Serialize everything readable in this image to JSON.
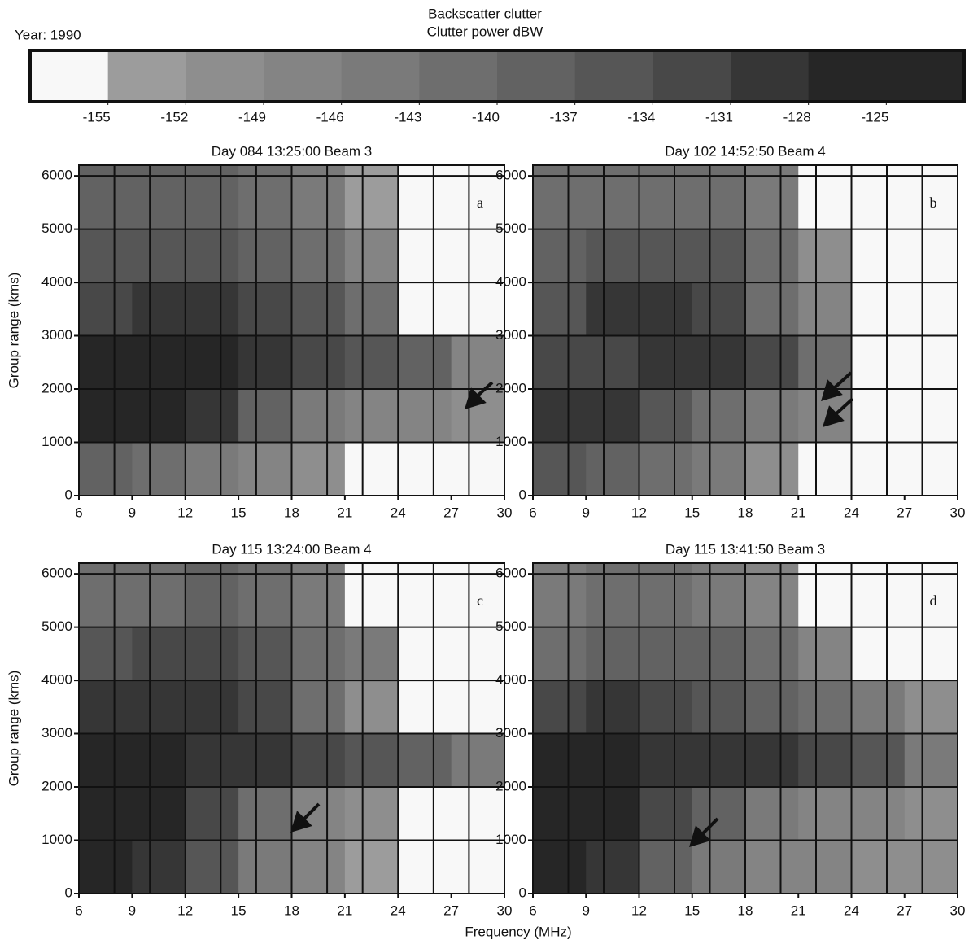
{
  "chart_data": [
    {
      "type": "colorbar",
      "title": "Backscatter clutter",
      "subtitle": "Clutter power dBW",
      "note": "Year: 1990",
      "ticks": [
        -155,
        -152,
        -149,
        -146,
        -143,
        -140,
        -137,
        -134,
        -131,
        -128,
        -125
      ],
      "colors": [
        "#f8f8f8",
        "#9c9c9c",
        "#8e8e8e",
        "#848484",
        "#7a7a7a",
        "#6e6e6e",
        "#626262",
        "#565656",
        "#484848",
        "#363636",
        "#262626",
        "#262626"
      ]
    },
    {
      "type": "heatmap",
      "title": "Day 084 13:25:00 Beam 3",
      "label": "a",
      "ylabel": "Group range (kms)",
      "x": [
        6,
        9,
        12,
        15,
        18,
        21,
        24,
        27,
        30
      ],
      "y": [
        0,
        1000,
        2000,
        3000,
        4000,
        5000,
        6200
      ],
      "z": [
        [
          -140,
          -143,
          -146,
          -149,
          -152,
          -157,
          -157,
          -157
        ],
        [
          -128,
          -128,
          -131,
          -140,
          -146,
          -149,
          -149,
          -152
        ],
        [
          -128,
          -128,
          -128,
          -131,
          -134,
          -137,
          -140,
          -149
        ],
        [
          -134,
          -131,
          -131,
          -134,
          -137,
          -143,
          -157,
          -157
        ],
        [
          -137,
          -137,
          -137,
          -140,
          -143,
          -149,
          -157,
          -157
        ],
        [
          -140,
          -140,
          -140,
          -143,
          -146,
          -155,
          -157,
          -157
        ]
      ],
      "xlim": [
        6,
        30
      ],
      "ylim": [
        0,
        6200
      ],
      "xticks": [
        6,
        9,
        12,
        15,
        18,
        21,
        24,
        27,
        30
      ],
      "yticks": [
        0,
        1000,
        2000,
        3000,
        4000,
        5000,
        6000
      ],
      "xgrid": [
        6,
        8,
        10,
        12,
        14,
        16,
        18,
        20,
        22,
        24,
        26,
        28,
        30
      ]
    },
    {
      "type": "heatmap",
      "title": "Day 102 14:52:50 Beam 4",
      "label": "b",
      "x": [
        6,
        9,
        12,
        15,
        18,
        21,
        24,
        27,
        30
      ],
      "y": [
        0,
        1000,
        2000,
        3000,
        4000,
        5000,
        6200
      ],
      "z": [
        [
          -137,
          -140,
          -143,
          -146,
          -152,
          -157,
          -157,
          -157
        ],
        [
          -131,
          -131,
          -137,
          -143,
          -146,
          -149,
          -157,
          -157
        ],
        [
          -134,
          -134,
          -131,
          -131,
          -134,
          -143,
          -157,
          -157
        ],
        [
          -137,
          -131,
          -131,
          -134,
          -143,
          -149,
          -157,
          -157
        ],
        [
          -140,
          -137,
          -137,
          -137,
          -143,
          -152,
          -157,
          -157
        ],
        [
          -143,
          -143,
          -143,
          -143,
          -146,
          -157,
          -157,
          -157
        ]
      ],
      "xlim": [
        6,
        30
      ],
      "ylim": [
        0,
        6200
      ],
      "xticks": [
        6,
        9,
        12,
        15,
        18,
        21,
        24,
        27,
        30
      ],
      "yticks": [
        0,
        1000,
        2000,
        3000,
        4000,
        5000,
        6000
      ],
      "xgrid": [
        6,
        8,
        10,
        12,
        14,
        16,
        18,
        20,
        22,
        24,
        26,
        28,
        30
      ]
    },
    {
      "type": "heatmap",
      "title": "Day 115 13:24:00 Beam 4",
      "label": "c",
      "ylabel": "Group range (kms)",
      "xlabel": "Frequency (MHz)",
      "x": [
        6,
        9,
        12,
        15,
        18,
        21,
        24,
        27,
        30
      ],
      "y": [
        0,
        1000,
        2000,
        3000,
        4000,
        5000,
        6200
      ],
      "z": [
        [
          -128,
          -131,
          -137,
          -146,
          -149,
          -155,
          -157,
          -157
        ],
        [
          -128,
          -128,
          -134,
          -143,
          -149,
          -152,
          -157,
          -157
        ],
        [
          -128,
          -128,
          -131,
          -131,
          -134,
          -137,
          -140,
          -146
        ],
        [
          -131,
          -131,
          -131,
          -134,
          -143,
          -152,
          -157,
          -157
        ],
        [
          -137,
          -134,
          -134,
          -137,
          -143,
          -146,
          -157,
          -157
        ],
        [
          -143,
          -143,
          -140,
          -143,
          -146,
          -157,
          -157,
          -157
        ]
      ],
      "xlim": [
        6,
        30
      ],
      "ylim": [
        0,
        6200
      ],
      "xticks": [
        6,
        9,
        12,
        15,
        18,
        21,
        24,
        27,
        30
      ],
      "yticks": [
        0,
        1000,
        2000,
        3000,
        4000,
        5000,
        6000
      ],
      "xgrid": [
        6,
        8,
        10,
        12,
        14,
        16,
        18,
        20,
        22,
        24,
        26,
        28,
        30
      ]
    },
    {
      "type": "heatmap",
      "title": "Day 115 13:41:50 Beam 3",
      "label": "d",
      "x": [
        6,
        9,
        12,
        15,
        18,
        21,
        24,
        27,
        30
      ],
      "y": [
        0,
        1000,
        2000,
        3000,
        4000,
        5000,
        6200
      ],
      "z": [
        [
          -128,
          -131,
          -140,
          -146,
          -149,
          -149,
          -152,
          -152
        ],
        [
          -128,
          -128,
          -134,
          -140,
          -146,
          -149,
          -149,
          -152
        ],
        [
          -128,
          -128,
          -131,
          -131,
          -131,
          -134,
          -137,
          -146
        ],
        [
          -134,
          -131,
          -134,
          -137,
          -140,
          -143,
          -146,
          -152
        ],
        [
          -143,
          -140,
          -140,
          -140,
          -143,
          -149,
          -157,
          -157
        ],
        [
          -146,
          -143,
          -143,
          -146,
          -149,
          -157,
          -157,
          -157
        ]
      ],
      "xlim": [
        6,
        30
      ],
      "ylim": [
        0,
        6200
      ],
      "xticks": [
        6,
        9,
        12,
        15,
        18,
        21,
        24,
        27,
        30
      ],
      "yticks": [
        0,
        1000,
        2000,
        3000,
        4000,
        5000,
        6000
      ],
      "xgrid": [
        6,
        8,
        10,
        12,
        14,
        16,
        18,
        20,
        22,
        24,
        26,
        28,
        30
      ]
    }
  ]
}
